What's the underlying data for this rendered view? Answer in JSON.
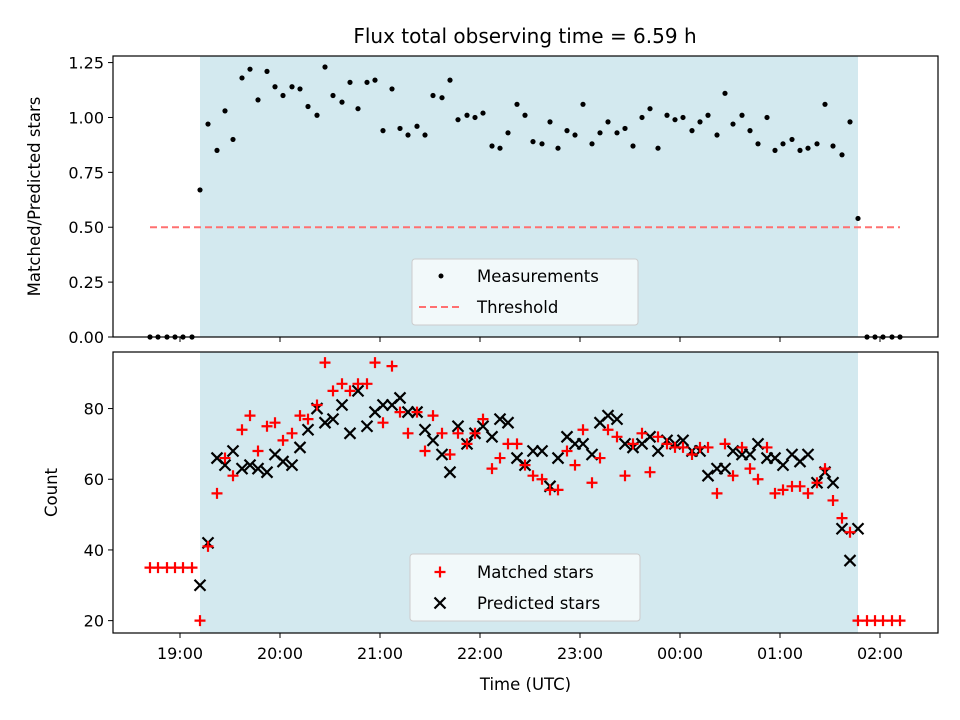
{
  "chart_data": [
    {
      "type": "scatter",
      "title": "Flux total observing time = 6.59 h",
      "xlabel": "",
      "ylabel": "Matched/Predicted stars",
      "ylim": [
        0,
        1.28
      ],
      "yticks": [
        "0.00",
        "0.25",
        "0.50",
        "0.75",
        "1.00",
        "1.25"
      ],
      "ytick_values": [
        0,
        0.25,
        0.5,
        0.75,
        1.0,
        1.25
      ],
      "xlim_hours": [
        18.33,
        26.58
      ],
      "night_span_hours": [
        19.2,
        25.78
      ],
      "night_color": "#d3e9ef",
      "threshold": {
        "label": "Threshold",
        "value": 0.5,
        "x_from": 18.7,
        "x_to": 26.2,
        "color": "#ff7070"
      },
      "series": [
        {
          "name": "Measurements",
          "color": "#000000",
          "x": [
            18.7,
            18.78,
            18.87,
            18.95,
            19.03,
            19.12,
            19.2,
            19.28,
            19.37,
            19.45,
            19.53,
            19.62,
            19.7,
            19.78,
            19.87,
            19.95,
            20.03,
            20.12,
            20.2,
            20.28,
            20.37,
            20.45,
            20.53,
            20.62,
            20.7,
            20.78,
            20.87,
            20.95,
            21.03,
            21.12,
            21.2,
            21.28,
            21.37,
            21.45,
            21.53,
            21.62,
            21.7,
            21.78,
            21.87,
            21.95,
            22.03,
            22.12,
            22.2,
            22.28,
            22.37,
            22.45,
            22.53,
            22.62,
            22.7,
            22.78,
            22.87,
            22.95,
            23.03,
            23.12,
            23.2,
            23.28,
            23.37,
            23.45,
            23.53,
            23.62,
            23.7,
            23.78,
            23.87,
            23.95,
            24.03,
            24.12,
            24.2,
            24.28,
            24.37,
            24.45,
            24.53,
            24.62,
            24.7,
            24.78,
            24.87,
            24.95,
            25.03,
            25.12,
            25.2,
            25.28,
            25.37,
            25.45,
            25.53,
            25.62,
            25.7,
            25.78,
            25.87,
            25.95,
            26.03,
            26.12,
            26.2
          ],
          "y": [
            0,
            0,
            0,
            0,
            0,
            0,
            0.67,
            0.97,
            0.85,
            1.03,
            0.9,
            1.18,
            1.22,
            1.08,
            1.21,
            1.14,
            1.1,
            1.14,
            1.13,
            1.05,
            1.01,
            1.23,
            1.1,
            1.07,
            1.16,
            1.04,
            1.16,
            1.17,
            0.94,
            1.13,
            0.95,
            0.92,
            0.96,
            0.92,
            1.1,
            1.09,
            1.17,
            0.99,
            1.01,
            1.0,
            1.02,
            0.87,
            0.86,
            0.93,
            1.06,
            1.01,
            0.89,
            0.88,
            0.98,
            0.86,
            0.94,
            0.92,
            1.06,
            0.88,
            0.93,
            0.98,
            0.93,
            0.95,
            0.87,
            1.0,
            1.04,
            0.86,
            1.01,
            0.99,
            1.0,
            0.94,
            0.98,
            1.01,
            0.92,
            1.11,
            0.97,
            1.01,
            0.94,
            0.88,
            1.0,
            0.85,
            0.88,
            0.9,
            0.85,
            0.86,
            0.88,
            1.06,
            0.87,
            0.83,
            0.98,
            0.54,
            0,
            0,
            0,
            0,
            0
          ]
        }
      ],
      "legend": {
        "placement": "lower-center",
        "items": [
          "Measurements",
          "Threshold"
        ]
      }
    },
    {
      "type": "scatter",
      "title": "",
      "xlabel": "Time (UTC)",
      "ylabel": "Count",
      "ylim": [
        16.5,
        96
      ],
      "yticks": [
        "20",
        "40",
        "60",
        "80"
      ],
      "ytick_values": [
        20,
        40,
        60,
        80
      ],
      "xlim_hours": [
        18.33,
        26.58
      ],
      "xticks": [
        "19:00",
        "20:00",
        "21:00",
        "22:00",
        "23:00",
        "00:00",
        "01:00",
        "02:00"
      ],
      "xtick_hours": [
        19,
        20,
        21,
        22,
        23,
        24,
        25,
        26
      ],
      "night_span_hours": [
        19.2,
        25.78
      ],
      "night_color": "#d3e9ef",
      "series": [
        {
          "name": "Matched stars",
          "marker": "plus",
          "color": "#ff0000",
          "x": [
            18.7,
            18.78,
            18.87,
            18.95,
            19.03,
            19.12,
            19.2,
            19.28,
            19.37,
            19.45,
            19.53,
            19.62,
            19.7,
            19.78,
            19.87,
            19.95,
            20.03,
            20.12,
            20.2,
            20.28,
            20.37,
            20.45,
            20.53,
            20.62,
            20.7,
            20.78,
            20.87,
            20.95,
            21.03,
            21.12,
            21.2,
            21.28,
            21.37,
            21.45,
            21.53,
            21.62,
            21.7,
            21.78,
            21.87,
            21.95,
            22.03,
            22.12,
            22.2,
            22.28,
            22.37,
            22.45,
            22.53,
            22.62,
            22.7,
            22.78,
            22.87,
            22.95,
            23.03,
            23.12,
            23.2,
            23.28,
            23.37,
            23.45,
            23.53,
            23.62,
            23.7,
            23.78,
            23.87,
            23.95,
            24.03,
            24.12,
            24.2,
            24.28,
            24.37,
            24.45,
            24.53,
            24.62,
            24.7,
            24.78,
            24.87,
            24.95,
            25.03,
            25.12,
            25.2,
            25.28,
            25.37,
            25.45,
            25.53,
            25.62,
            25.7,
            25.78,
            25.87,
            25.95,
            26.03,
            26.12,
            26.2
          ],
          "y": [
            35,
            35,
            35,
            35,
            35,
            35,
            20,
            41,
            56,
            66,
            61,
            74,
            78,
            68,
            75,
            76,
            71,
            73,
            78,
            77,
            81,
            93,
            85,
            87,
            85,
            87,
            87,
            93,
            76,
            92,
            79,
            73,
            79,
            68,
            78,
            73,
            67,
            73,
            70,
            73,
            77,
            63,
            66,
            70,
            70,
            64,
            61,
            60,
            57,
            57,
            68,
            64,
            74,
            59,
            66,
            74,
            72,
            61,
            70,
            73,
            62,
            72,
            70,
            69,
            69,
            67,
            69,
            69,
            56,
            70,
            61,
            69,
            63,
            60,
            69,
            56,
            57,
            58,
            58,
            56,
            59,
            63,
            54,
            49,
            45,
            20,
            20,
            20,
            20,
            20,
            20
          ]
        },
        {
          "name": "Predicted stars",
          "marker": "x",
          "color": "#000000",
          "x": [
            19.2,
            19.28,
            19.37,
            19.45,
            19.53,
            19.62,
            19.7,
            19.78,
            19.87,
            19.95,
            20.03,
            20.12,
            20.2,
            20.28,
            20.37,
            20.45,
            20.53,
            20.62,
            20.7,
            20.78,
            20.87,
            20.95,
            21.03,
            21.12,
            21.2,
            21.28,
            21.37,
            21.45,
            21.53,
            21.62,
            21.7,
            21.78,
            21.87,
            21.95,
            22.03,
            22.12,
            22.2,
            22.28,
            22.37,
            22.45,
            22.53,
            22.62,
            22.7,
            22.78,
            22.87,
            22.95,
            23.03,
            23.12,
            23.2,
            23.28,
            23.37,
            23.45,
            23.53,
            23.62,
            23.7,
            23.78,
            23.87,
            23.95,
            24.03,
            24.12,
            24.2,
            24.28,
            24.37,
            24.45,
            24.53,
            24.62,
            24.7,
            24.78,
            24.87,
            24.95,
            25.03,
            25.12,
            25.2,
            25.28,
            25.37,
            25.45,
            25.53,
            25.62,
            25.7,
            25.78
          ],
          "y": [
            30,
            42,
            66,
            64,
            68,
            63,
            64,
            63,
            62,
            67,
            65,
            64,
            69,
            74,
            80,
            76,
            77,
            81,
            73,
            85,
            75,
            79,
            81,
            81,
            83,
            79,
            79,
            74,
            71,
            67,
            62,
            75,
            70,
            73,
            75,
            72,
            77,
            76,
            66,
            64,
            68,
            68,
            58,
            66,
            72,
            70,
            70,
            67,
            76,
            78,
            77,
            70,
            69,
            70,
            72,
            68,
            71,
            70,
            71,
            68,
            68,
            61,
            63,
            63,
            68,
            67,
            67,
            70,
            66,
            66,
            64,
            67,
            65,
            67,
            59,
            62,
            59,
            46,
            37,
            46
          ]
        }
      ],
      "legend": {
        "placement": "lower-center",
        "items": [
          "Matched stars",
          "Predicted stars"
        ]
      }
    }
  ]
}
